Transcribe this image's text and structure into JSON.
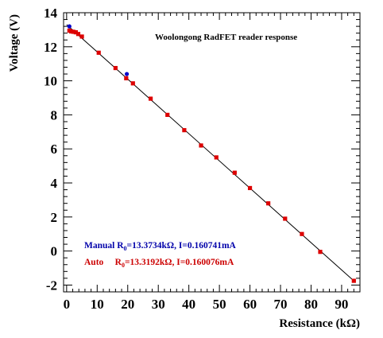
{
  "chart_data": {
    "type": "scatter",
    "title": "Woolongong RadFET reader response",
    "xlabel": "Resistance (kΩ)",
    "ylabel": "Voltage (V)",
    "xlim": [
      -1,
      96
    ],
    "ylim": [
      -2.4,
      14
    ],
    "x_ticks": [
      0,
      10,
      20,
      30,
      40,
      50,
      60,
      70,
      80,
      90
    ],
    "y_ticks": [
      -2,
      0,
      2,
      4,
      6,
      8,
      10,
      12,
      14
    ],
    "grid": false,
    "series": [
      {
        "color": "#0000cc",
        "points": [
          [
            0.9,
            13.2
          ],
          [
            19.7,
            10.4
          ]
        ]
      },
      {
        "color": "#dd0000",
        "points": [
          [
            0.9,
            12.95
          ],
          [
            1.5,
            12.9
          ],
          [
            2.2,
            12.88
          ],
          [
            3.0,
            12.85
          ],
          [
            3.8,
            12.75
          ],
          [
            5.0,
            12.6
          ],
          [
            10.5,
            11.65
          ],
          [
            16.0,
            10.75
          ],
          [
            19.5,
            10.15
          ],
          [
            21.7,
            9.85
          ],
          [
            27.5,
            8.95
          ],
          [
            33.0,
            8.0
          ],
          [
            38.5,
            7.1
          ],
          [
            44.0,
            6.2
          ],
          [
            49.0,
            5.5
          ],
          [
            55.0,
            4.6
          ],
          [
            60.0,
            3.7
          ],
          [
            66.0,
            2.8
          ],
          [
            71.5,
            1.9
          ],
          [
            77.0,
            1.0
          ],
          [
            83.0,
            -0.05
          ],
          [
            94.0,
            -1.75
          ]
        ]
      }
    ],
    "fit_line": {
      "x": [
        0,
        94
      ],
      "y": [
        13.3,
        -1.75
      ]
    },
    "annotations": [
      {
        "prefix": "Manual R",
        "sub": "0",
        "suffix": "=13.3734kΩ, I=0.160741mA",
        "color": "#0000aa"
      },
      {
        "prefix": "Auto     R",
        "sub": "0",
        "suffix": "=13.3192kΩ, I=0.160076mA",
        "color": "#cc0000"
      }
    ]
  }
}
